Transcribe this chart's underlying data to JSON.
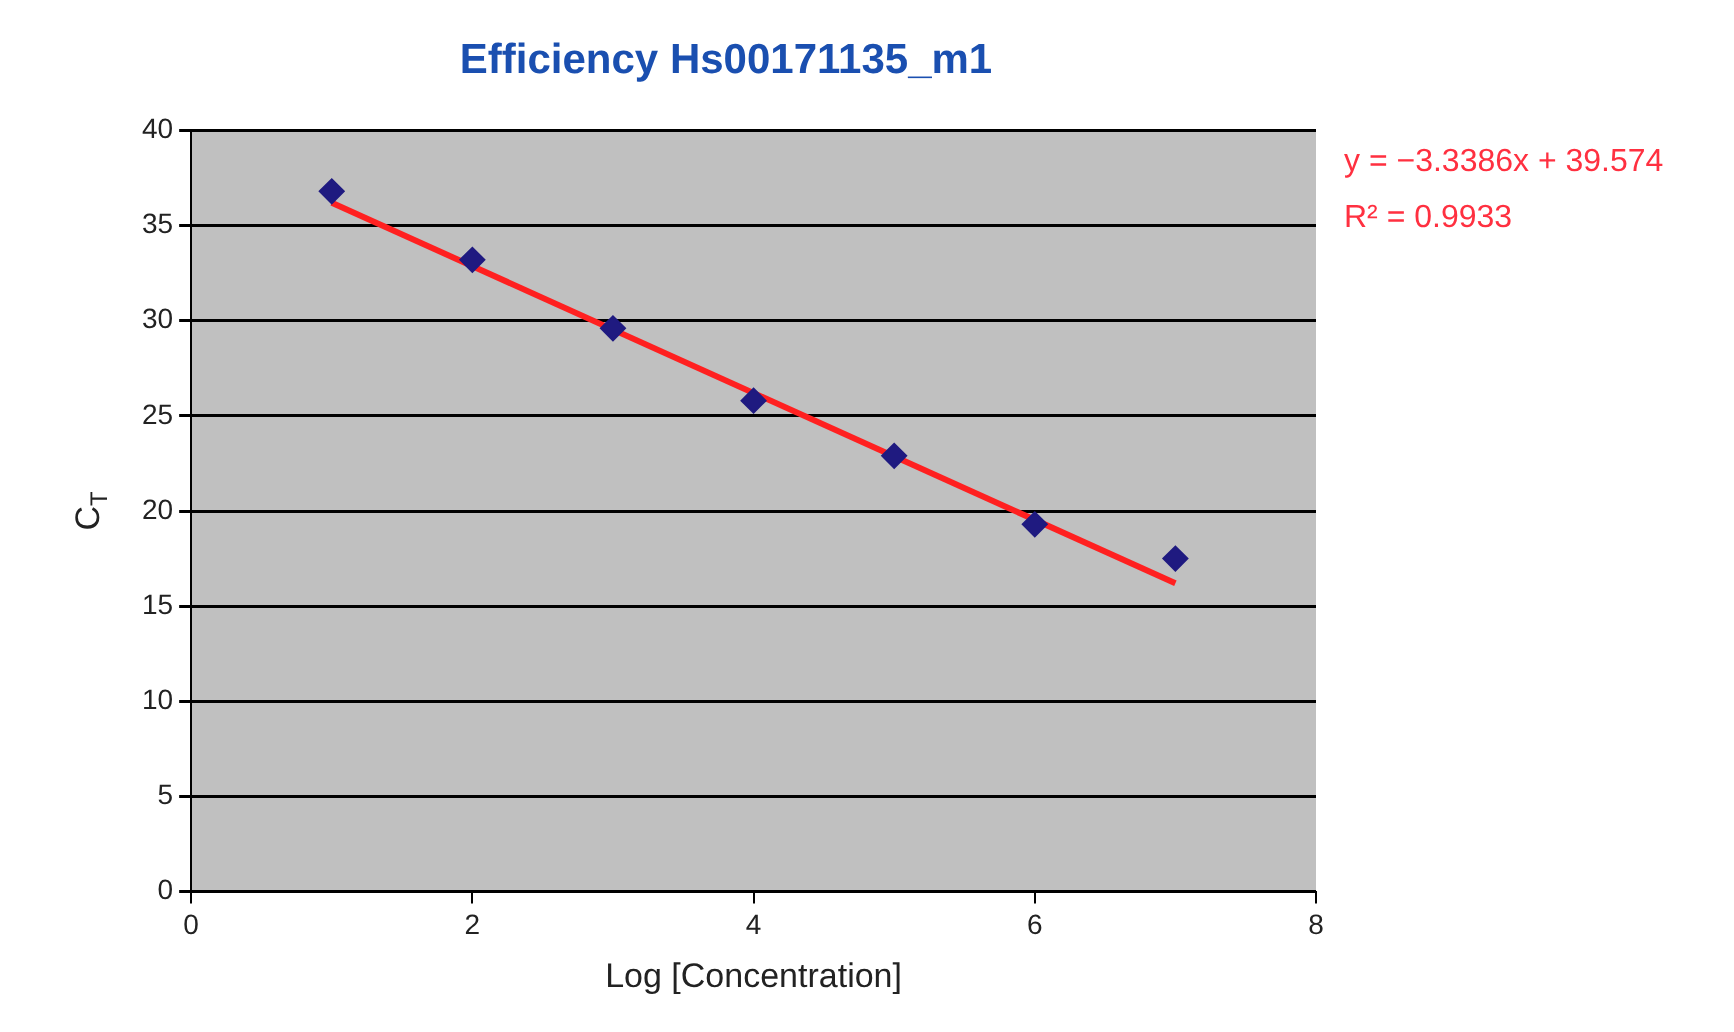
{
  "chart_data": {
    "type": "scatter",
    "title": "Efficiency Hs00171135_m1",
    "xlabel": "Log [Concentration]",
    "ylabel": "C$_{T}$",
    "x": [
      1,
      2,
      3,
      4,
      5,
      6,
      7
    ],
    "series": [
      {
        "type": "scatter",
        "color": "#1f1a80",
        "marker": "diamond",
        "values": [
          36.8,
          33.2,
          29.6,
          25.8,
          22.9,
          19.3,
          17.5
        ]
      },
      {
        "type": "line",
        "color": "#ff2020",
        "x": [
          1,
          7
        ],
        "values": [
          36.2,
          16.2
        ],
        "marker": "none",
        "line_style": "solid"
      }
    ],
    "xlim": [
      0,
      8
    ],
    "xticks": [
      0,
      2,
      4,
      6,
      8
    ],
    "ylim": [
      0,
      40
    ],
    "yticks": [
      0,
      5,
      10,
      15,
      20,
      25,
      30,
      35,
      40
    ],
    "grid": "y",
    "annotations": [
      "y = −3.3386x + 39.574",
      "R² = 0.9933"
    ]
  }
}
